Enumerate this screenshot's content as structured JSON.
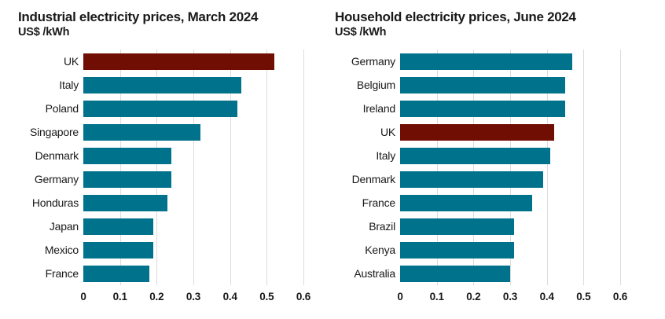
{
  "styles": {
    "background": "#ffffff",
    "text_color": "#191919",
    "gridline_color": "#dcdcdc"
  },
  "chart_data": [
    {
      "type": "bar",
      "orientation": "horizontal",
      "title": "Industrial electricity prices, March 2024",
      "subtitle": "US$ /kWh",
      "categories": [
        "UK",
        "Italy",
        "Poland",
        "Singapore",
        "Denmark",
        "Germany",
        "Honduras",
        "Japan",
        "Mexico",
        "France"
      ],
      "values": [
        0.52,
        0.43,
        0.42,
        0.32,
        0.24,
        0.24,
        0.23,
        0.19,
        0.19,
        0.18
      ],
      "highlight_category": "UK",
      "bar_color": "#00728c",
      "highlight_color": "#700e04",
      "xlim": [
        0,
        0.6
      ],
      "xticks": [
        "0",
        "0.1",
        "0.2",
        "0.3",
        "0.4",
        "0.5",
        "0.6"
      ],
      "grid": true,
      "legend": "none"
    },
    {
      "type": "bar",
      "orientation": "horizontal",
      "title": "Household electricity prices, June 2024",
      "subtitle": "US$ /kWh",
      "categories": [
        "Germany",
        "Belgium",
        "Ireland",
        "UK",
        "Italy",
        "Denmark",
        "France",
        "Brazil",
        "Kenya",
        "Australia"
      ],
      "values": [
        0.47,
        0.45,
        0.45,
        0.42,
        0.41,
        0.39,
        0.36,
        0.31,
        0.31,
        0.3
      ],
      "highlight_category": "UK",
      "bar_color": "#00728c",
      "highlight_color": "#700e04",
      "xlim": [
        0,
        0.6
      ],
      "xticks": [
        "0",
        "0.1",
        "0.2",
        "0.3",
        "0.4",
        "0.5",
        "0.6"
      ],
      "grid": true,
      "legend": "none"
    }
  ]
}
